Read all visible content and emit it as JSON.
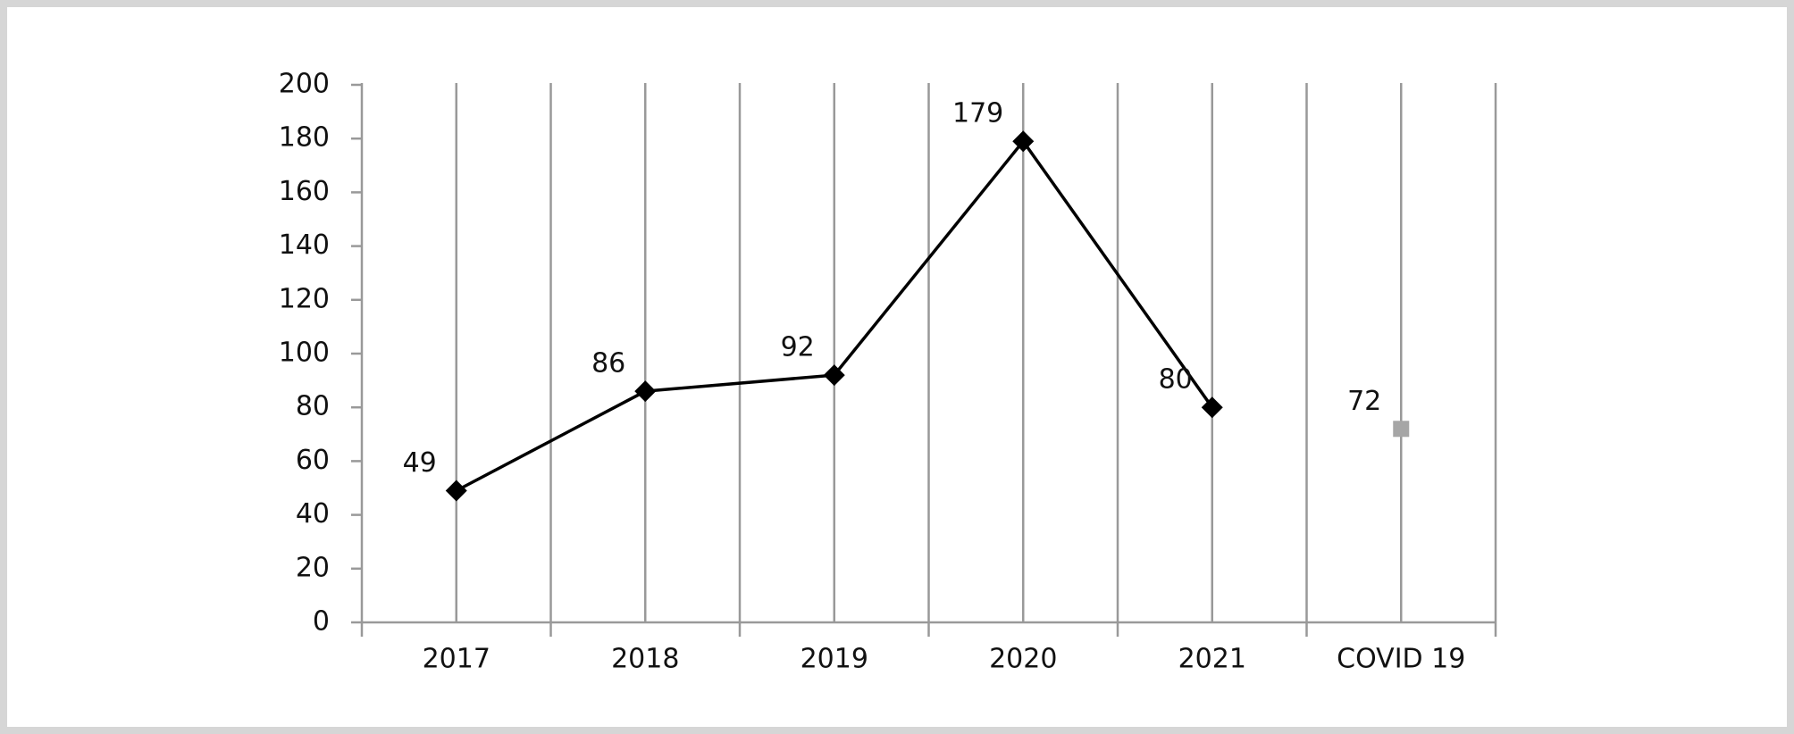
{
  "chart_data": {
    "type": "line",
    "categories": [
      "2017",
      "2018",
      "2019",
      "2020",
      "2021",
      "COVID 19"
    ],
    "series": [
      {
        "color": "#000000",
        "marker": "diamond",
        "values": [
          49,
          86,
          92,
          179,
          80,
          null
        ]
      },
      {
        "color": "#a6a6a6",
        "marker": "square",
        "values": [
          null,
          null,
          null,
          null,
          null,
          72
        ]
      }
    ],
    "ylim": [
      0,
      200
    ],
    "yticks": [
      0,
      20,
      40,
      60,
      80,
      100,
      120,
      140,
      160,
      180,
      200
    ],
    "grid": true,
    "data_labels": true
  }
}
